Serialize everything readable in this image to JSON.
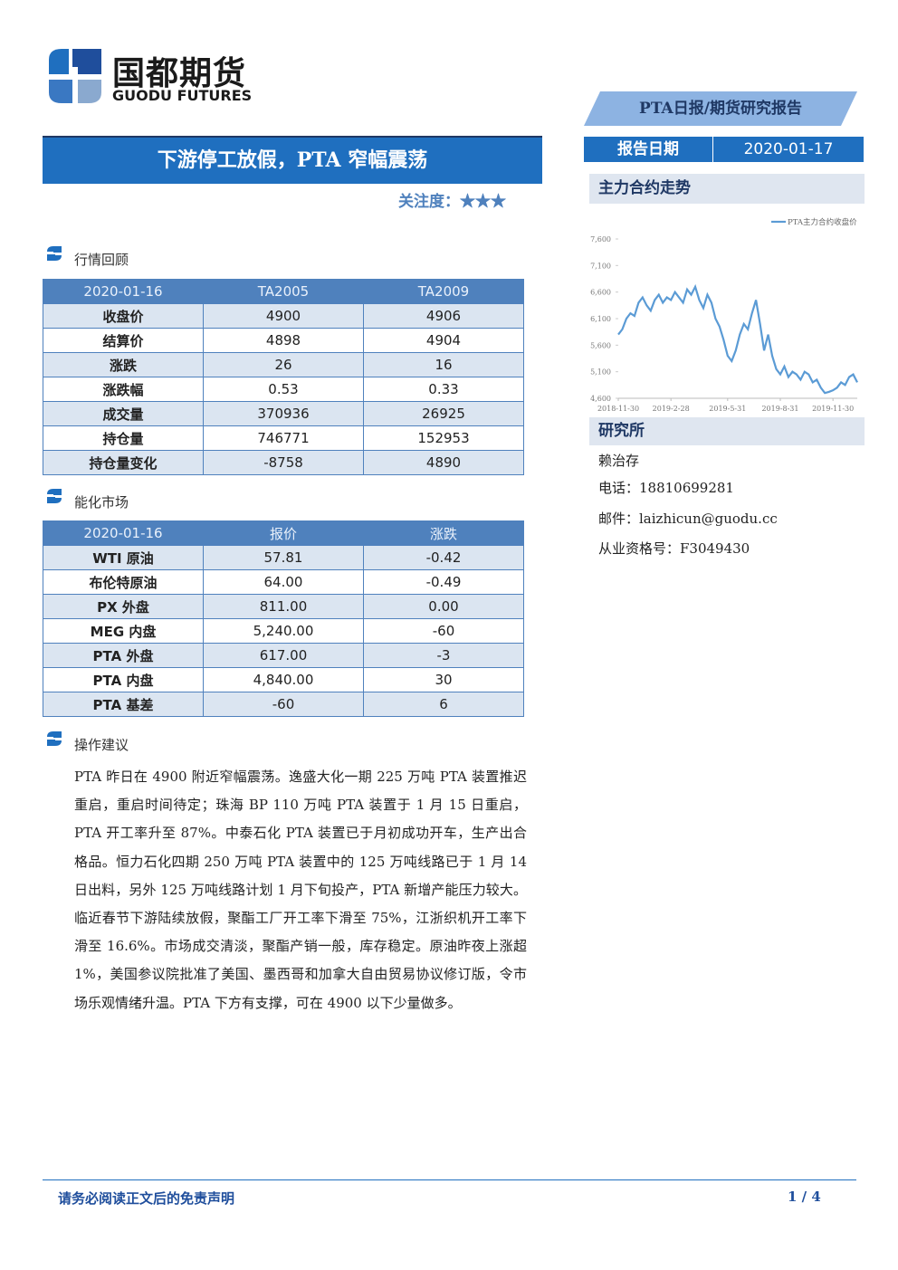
{
  "header": {
    "logo_cn": "国都期货",
    "logo_en": "GUODU FUTURES",
    "report_type": "PTA日报/期货研究报告",
    "date_label": "报告日期",
    "date": "2020-01-17"
  },
  "title": "下游停工放假，PTA 窄幅震荡",
  "attention": {
    "label": "关注度：",
    "stars": "★★★"
  },
  "market_review": {
    "heading": "行情回顾",
    "table": {
      "header": [
        "2020-01-16",
        "TA2005",
        "TA2009"
      ],
      "rows": [
        [
          "收盘价",
          "4900",
          "4906"
        ],
        [
          "结算价",
          "4898",
          "4904"
        ],
        [
          "涨跌",
          "26",
          "16"
        ],
        [
          "涨跌幅",
          "0.53",
          "0.33"
        ],
        [
          "成交量",
          "370936",
          "26925"
        ],
        [
          "持仓量",
          "746771",
          "152953"
        ],
        [
          "持仓量变化",
          "-8758",
          "4890"
        ]
      ]
    }
  },
  "energy_market": {
    "heading": "能化市场",
    "table": {
      "header": [
        "2020-01-16",
        "报价",
        "涨跌"
      ],
      "rows": [
        [
          "WTI 原油",
          "57.81",
          "-0.42"
        ],
        [
          "布伦特原油",
          "64.00",
          "-0.49"
        ],
        [
          "PX 外盘",
          "811.00",
          "0.00"
        ],
        [
          "MEG 内盘",
          "5,240.00",
          "-60"
        ],
        [
          "PTA 外盘",
          "617.00",
          "-3"
        ],
        [
          "PTA 内盘",
          "4,840.00",
          "30"
        ],
        [
          "PTA 基差",
          "-60",
          "6"
        ]
      ]
    }
  },
  "advice": {
    "heading": "操作建议",
    "text": "PTA 昨日在 4900 附近窄幅震荡。逸盛大化一期 225 万吨 PTA 装置推迟重启，重启时间待定；珠海 BP 110 万吨 PTA 装置于 1 月 15 日重启，PTA 开工率升至 87%。中泰石化 PTA 装置已于月初成功开车，生产出合格品。恒力石化四期 250 万吨 PTA 装置中的 125 万吨线路已于 1 月 14 日出料，另外 125 万吨线路计划 1 月下旬投产，PTA 新增产能压力较大。临近春节下游陆续放假，聚酯工厂开工率下滑至 75%，江浙织机开工率下滑至 16.6%。市场成交清淡，聚酯产销一般，库存稳定。原油昨夜上涨超 1%，美国参议院批准了美国、墨西哥和加拿大自由贸易协议修订版，令市场乐观情绪升温。PTA 下方有支撑，可在 4900 以下少量做多。"
  },
  "sidebar": {
    "chart_heading": "主力合约走势",
    "research_heading": "研究所",
    "analyst": "赖治存",
    "phone": "电话：18810699281",
    "email": "邮件：laizhicun@guodu.cc",
    "license": "从业资格号：F3049430"
  },
  "chart_data": {
    "type": "line",
    "categories": [
      "2018-11-30",
      null,
      null,
      null,
      null,
      null,
      null,
      null,
      null,
      null,
      null,
      null,
      null,
      "2019-2-28",
      null,
      null,
      null,
      null,
      null,
      null,
      null,
      null,
      null,
      null,
      null,
      null,
      null,
      "2019-5-31",
      null,
      null,
      null,
      null,
      null,
      null,
      null,
      null,
      null,
      null,
      null,
      null,
      "2019-8-31",
      null,
      null,
      null,
      null,
      null,
      null,
      null,
      null,
      null,
      null,
      null,
      null,
      "2019-11-30",
      null,
      null,
      null,
      null,
      null,
      null
    ],
    "series": [
      {
        "name": "PTA主力合约收盘价",
        "color": "#5b9bd5",
        "values": [
          5800,
          5900,
          6100,
          6200,
          6150,
          6400,
          6500,
          6350,
          6250,
          6450,
          6550,
          6400,
          6500,
          6450,
          6600,
          6500,
          6400,
          6650,
          6550,
          6700,
          6450,
          6300,
          6550,
          6400,
          6100,
          5950,
          5700,
          5400,
          5300,
          5500,
          5800,
          6000,
          5900,
          6200,
          6450,
          6000,
          5500,
          5800,
          5400,
          5150,
          5050,
          5200,
          5000,
          5100,
          5050,
          4950,
          5100,
          5050,
          4900,
          4950,
          4800,
          4700,
          4720,
          4750,
          4800,
          4900,
          4850,
          5000,
          5050,
          4900
        ]
      }
    ],
    "ylim": [
      4600,
      7600
    ],
    "yticks": [
      {
        "value": 4600,
        "label": "4,600"
      },
      {
        "value": 5100,
        "label": "5,100"
      },
      {
        "value": 5600,
        "label": "5,600"
      },
      {
        "value": 6100,
        "label": "6,100"
      },
      {
        "value": 6600,
        "label": "6,600"
      },
      {
        "value": 7100,
        "label": "7,100"
      },
      {
        "value": 7600,
        "label": "7,600"
      }
    ],
    "legend": "top-right"
  },
  "footer": {
    "disclaimer": "请务必阅读正文后的免责声明",
    "page": "1 / 4"
  }
}
